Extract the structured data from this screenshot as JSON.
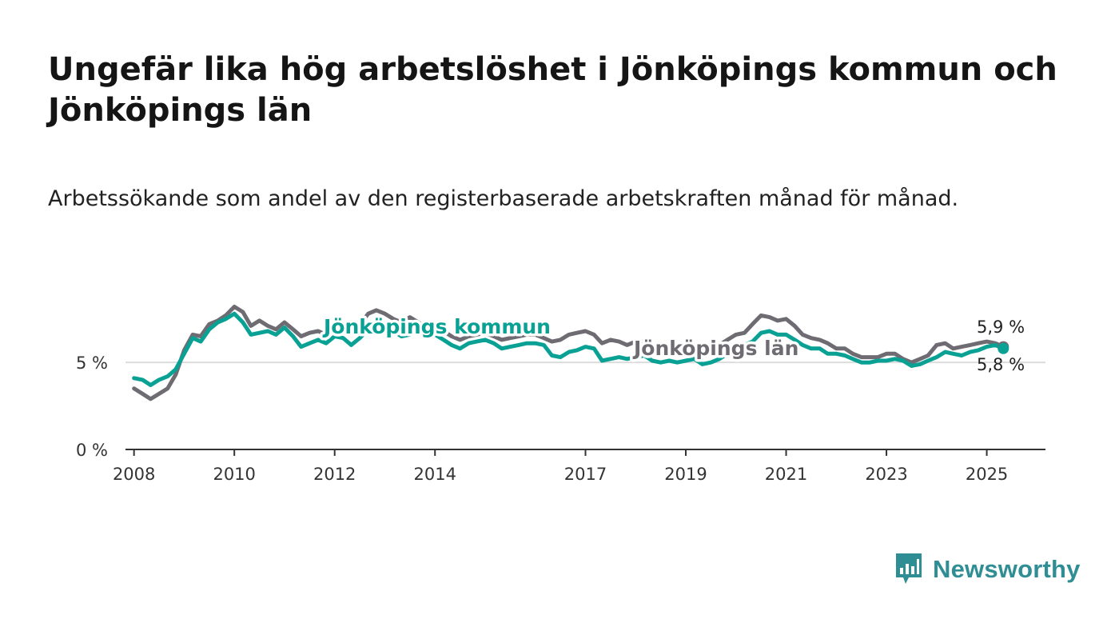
{
  "title": "Ungefär lika hög arbetslöshet i Jönköpings kommun och Jönköpings län",
  "subtitle": "Arbetssökande som andel av den registerbaserade arbetskraften månad för månad.",
  "brand": {
    "name": "Newsworthy",
    "icon": "newsworthy-bar-chart-icon"
  },
  "colors": {
    "kommun": "#0aa195",
    "lan": "#6e6c72",
    "axis": "#333333",
    "grid": "#dcdcdc"
  },
  "chart_data": {
    "type": "line",
    "y_tick_labels": [
      "0 %",
      "5 %"
    ],
    "y_ticks": [
      0,
      5
    ],
    "ylim": [
      0,
      8.5
    ],
    "xlim": [
      2007.83,
      2026.17
    ],
    "x_ticks": [
      2008,
      2010,
      2012,
      2014,
      2017,
      2019,
      2021,
      2023,
      2025
    ],
    "x_tick_labels": [
      "2008",
      "2010",
      "2012",
      "2014",
      "2017",
      "2019",
      "2021",
      "2023",
      "2025"
    ],
    "grid": "horizontal at 5 %",
    "series": [
      {
        "name": "Jönköpings kommun",
        "color": "#0aa195",
        "end_label": "5,8 %",
        "points": [
          [
            2008.0,
            4.1
          ],
          [
            2008.17,
            4.0
          ],
          [
            2008.33,
            3.7
          ],
          [
            2008.5,
            4.0
          ],
          [
            2008.67,
            4.2
          ],
          [
            2008.83,
            4.6
          ],
          [
            2009.0,
            5.5
          ],
          [
            2009.17,
            6.4
          ],
          [
            2009.33,
            6.2
          ],
          [
            2009.5,
            6.9
          ],
          [
            2009.67,
            7.3
          ],
          [
            2009.83,
            7.5
          ],
          [
            2010.0,
            7.8
          ],
          [
            2010.17,
            7.3
          ],
          [
            2010.33,
            6.6
          ],
          [
            2010.5,
            6.7
          ],
          [
            2010.67,
            6.8
          ],
          [
            2010.83,
            6.6
          ],
          [
            2011.0,
            7.0
          ],
          [
            2011.17,
            6.5
          ],
          [
            2011.33,
            5.9
          ],
          [
            2011.5,
            6.1
          ],
          [
            2011.67,
            6.3
          ],
          [
            2011.83,
            6.1
          ],
          [
            2012.0,
            6.5
          ],
          [
            2012.17,
            6.4
          ],
          [
            2012.33,
            6.0
          ],
          [
            2012.5,
            6.4
          ],
          [
            2012.67,
            6.9
          ],
          [
            2012.83,
            7.0
          ],
          [
            2013.0,
            7.1
          ],
          [
            2013.17,
            6.8
          ],
          [
            2013.33,
            6.5
          ],
          [
            2013.5,
            6.6
          ],
          [
            2013.67,
            6.8
          ],
          [
            2013.83,
            6.5
          ],
          [
            2014.0,
            6.6
          ],
          [
            2014.17,
            6.3
          ],
          [
            2014.33,
            6.0
          ],
          [
            2014.5,
            5.8
          ],
          [
            2014.67,
            6.1
          ],
          [
            2014.83,
            6.2
          ],
          [
            2015.0,
            6.3
          ],
          [
            2015.17,
            6.1
          ],
          [
            2015.33,
            5.8
          ],
          [
            2015.5,
            5.9
          ],
          [
            2015.67,
            6.0
          ],
          [
            2015.83,
            6.1
          ],
          [
            2016.0,
            6.1
          ],
          [
            2016.17,
            6.0
          ],
          [
            2016.33,
            5.4
          ],
          [
            2016.5,
            5.3
          ],
          [
            2016.67,
            5.6
          ],
          [
            2016.83,
            5.7
          ],
          [
            2017.0,
            5.9
          ],
          [
            2017.17,
            5.8
          ],
          [
            2017.33,
            5.1
          ],
          [
            2017.5,
            5.2
          ],
          [
            2017.67,
            5.3
          ],
          [
            2017.83,
            5.2
          ],
          [
            2018.0,
            5.3
          ],
          [
            2018.17,
            5.4
          ],
          [
            2018.33,
            5.1
          ],
          [
            2018.5,
            5.0
          ],
          [
            2018.67,
            5.1
          ],
          [
            2018.83,
            5.0
          ],
          [
            2019.0,
            5.1
          ],
          [
            2019.17,
            5.2
          ],
          [
            2019.33,
            4.9
          ],
          [
            2019.5,
            5.0
          ],
          [
            2019.67,
            5.2
          ],
          [
            2019.83,
            5.5
          ],
          [
            2020.0,
            5.8
          ],
          [
            2020.17,
            6.0
          ],
          [
            2020.33,
            6.2
          ],
          [
            2020.5,
            6.7
          ],
          [
            2020.67,
            6.8
          ],
          [
            2020.83,
            6.6
          ],
          [
            2021.0,
            6.6
          ],
          [
            2021.17,
            6.3
          ],
          [
            2021.33,
            6.0
          ],
          [
            2021.5,
            5.8
          ],
          [
            2021.67,
            5.8
          ],
          [
            2021.83,
            5.5
          ],
          [
            2022.0,
            5.5
          ],
          [
            2022.17,
            5.4
          ],
          [
            2022.33,
            5.2
          ],
          [
            2022.5,
            5.0
          ],
          [
            2022.67,
            5.0
          ],
          [
            2022.83,
            5.1
          ],
          [
            2023.0,
            5.1
          ],
          [
            2023.17,
            5.2
          ],
          [
            2023.33,
            5.1
          ],
          [
            2023.5,
            4.8
          ],
          [
            2023.67,
            4.9
          ],
          [
            2023.83,
            5.1
          ],
          [
            2024.0,
            5.3
          ],
          [
            2024.17,
            5.6
          ],
          [
            2024.33,
            5.5
          ],
          [
            2024.5,
            5.4
          ],
          [
            2024.67,
            5.6
          ],
          [
            2024.83,
            5.7
          ],
          [
            2025.0,
            5.9
          ],
          [
            2025.17,
            6.0
          ],
          [
            2025.33,
            5.8
          ]
        ]
      },
      {
        "name": "Jönköpings län",
        "color": "#6e6c72",
        "end_label": "5,9 %",
        "points": [
          [
            2008.0,
            3.5
          ],
          [
            2008.17,
            3.2
          ],
          [
            2008.33,
            2.9
          ],
          [
            2008.5,
            3.2
          ],
          [
            2008.67,
            3.5
          ],
          [
            2008.83,
            4.3
          ],
          [
            2009.0,
            5.7
          ],
          [
            2009.17,
            6.6
          ],
          [
            2009.33,
            6.5
          ],
          [
            2009.5,
            7.2
          ],
          [
            2009.67,
            7.4
          ],
          [
            2009.83,
            7.7
          ],
          [
            2010.0,
            8.2
          ],
          [
            2010.17,
            7.9
          ],
          [
            2010.33,
            7.1
          ],
          [
            2010.5,
            7.4
          ],
          [
            2010.67,
            7.1
          ],
          [
            2010.83,
            6.9
          ],
          [
            2011.0,
            7.3
          ],
          [
            2011.17,
            6.9
          ],
          [
            2011.33,
            6.5
          ],
          [
            2011.5,
            6.7
          ],
          [
            2011.67,
            6.8
          ],
          [
            2011.83,
            6.6
          ],
          [
            2012.0,
            7.0
          ],
          [
            2012.17,
            6.9
          ],
          [
            2012.33,
            6.7
          ],
          [
            2012.5,
            7.2
          ],
          [
            2012.67,
            7.8
          ],
          [
            2012.83,
            8.0
          ],
          [
            2013.0,
            7.8
          ],
          [
            2013.17,
            7.5
          ],
          [
            2013.33,
            7.3
          ],
          [
            2013.5,
            7.6
          ],
          [
            2013.67,
            7.3
          ],
          [
            2013.83,
            7.0
          ],
          [
            2014.0,
            7.1
          ],
          [
            2014.17,
            6.8
          ],
          [
            2014.33,
            6.5
          ],
          [
            2014.5,
            6.3
          ],
          [
            2014.67,
            6.5
          ],
          [
            2014.83,
            6.6
          ],
          [
            2015.0,
            6.7
          ],
          [
            2015.17,
            6.5
          ],
          [
            2015.33,
            6.3
          ],
          [
            2015.5,
            6.4
          ],
          [
            2015.67,
            6.5
          ],
          [
            2015.83,
            6.6
          ],
          [
            2016.0,
            6.6
          ],
          [
            2016.17,
            6.4
          ],
          [
            2016.33,
            6.2
          ],
          [
            2016.5,
            6.3
          ],
          [
            2016.67,
            6.6
          ],
          [
            2016.83,
            6.7
          ],
          [
            2017.0,
            6.8
          ],
          [
            2017.17,
            6.6
          ],
          [
            2017.33,
            6.1
          ],
          [
            2017.5,
            6.3
          ],
          [
            2017.67,
            6.2
          ],
          [
            2017.83,
            6.0
          ],
          [
            2018.0,
            6.2
          ],
          [
            2018.17,
            6.2
          ],
          [
            2018.33,
            6.0
          ],
          [
            2018.5,
            5.9
          ],
          [
            2018.67,
            5.9
          ],
          [
            2018.83,
            5.8
          ],
          [
            2019.0,
            5.9
          ],
          [
            2019.17,
            6.0
          ],
          [
            2019.33,
            5.8
          ],
          [
            2019.5,
            5.8
          ],
          [
            2019.67,
            6.0
          ],
          [
            2019.83,
            6.3
          ],
          [
            2020.0,
            6.6
          ],
          [
            2020.17,
            6.7
          ],
          [
            2020.33,
            7.2
          ],
          [
            2020.5,
            7.7
          ],
          [
            2020.67,
            7.6
          ],
          [
            2020.83,
            7.4
          ],
          [
            2021.0,
            7.5
          ],
          [
            2021.17,
            7.1
          ],
          [
            2021.33,
            6.6
          ],
          [
            2021.5,
            6.4
          ],
          [
            2021.67,
            6.3
          ],
          [
            2021.83,
            6.1
          ],
          [
            2022.0,
            5.8
          ],
          [
            2022.17,
            5.8
          ],
          [
            2022.33,
            5.5
          ],
          [
            2022.5,
            5.3
          ],
          [
            2022.67,
            5.3
          ],
          [
            2022.83,
            5.3
          ],
          [
            2023.0,
            5.5
          ],
          [
            2023.17,
            5.5
          ],
          [
            2023.33,
            5.2
          ],
          [
            2023.5,
            5.0
          ],
          [
            2023.67,
            5.2
          ],
          [
            2023.83,
            5.4
          ],
          [
            2024.0,
            6.0
          ],
          [
            2024.17,
            6.1
          ],
          [
            2024.33,
            5.8
          ],
          [
            2024.5,
            5.9
          ],
          [
            2024.67,
            6.0
          ],
          [
            2024.83,
            6.1
          ],
          [
            2025.0,
            6.2
          ],
          [
            2025.17,
            6.1
          ],
          [
            2025.33,
            5.9
          ]
        ]
      }
    ]
  }
}
